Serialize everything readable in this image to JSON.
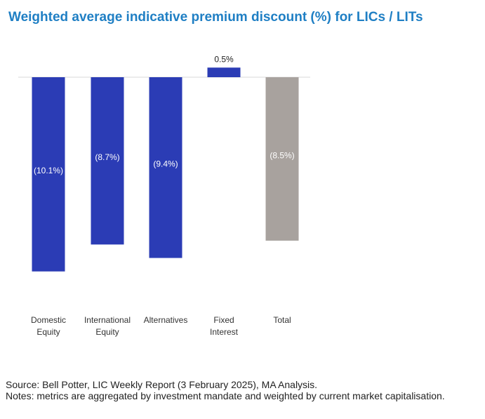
{
  "title": "Weighted average indicative premium discount (%) for LICs / LITs",
  "colors": {
    "title": "#1f7fc4",
    "bar": "#2b3cb5",
    "total_bar": "#a8a29e"
  },
  "chart_data": {
    "type": "bar",
    "title": "Weighted average indicative premium discount (%) for LICs / LITs",
    "categories": [
      [
        "Domestic",
        "Equity"
      ],
      [
        "International",
        "Equity"
      ],
      [
        "Alternatives"
      ],
      [
        "Fixed",
        "Interest"
      ],
      [
        "Total"
      ]
    ],
    "values": [
      -10.1,
      -8.7,
      -9.4,
      0.5,
      -8.5
    ],
    "data_labels": [
      "(10.1%)",
      "(8.7%)",
      "(9.4%)",
      "0.5%",
      "(8.5%)"
    ],
    "bar_colors": [
      "#2b3cb5",
      "#2b3cb5",
      "#2b3cb5",
      "#2b3cb5",
      "#a8a29e"
    ],
    "xlabel": "",
    "ylabel": "",
    "ylim": [
      -11,
      1
    ],
    "grid": false,
    "legend": "none"
  },
  "footer": {
    "source": "Source: Bell Potter, LIC Weekly Report (3 February 2025), MA Analysis.",
    "notes": "Notes: metrics are aggregated by investment mandate and weighted by current market capitalisation."
  }
}
